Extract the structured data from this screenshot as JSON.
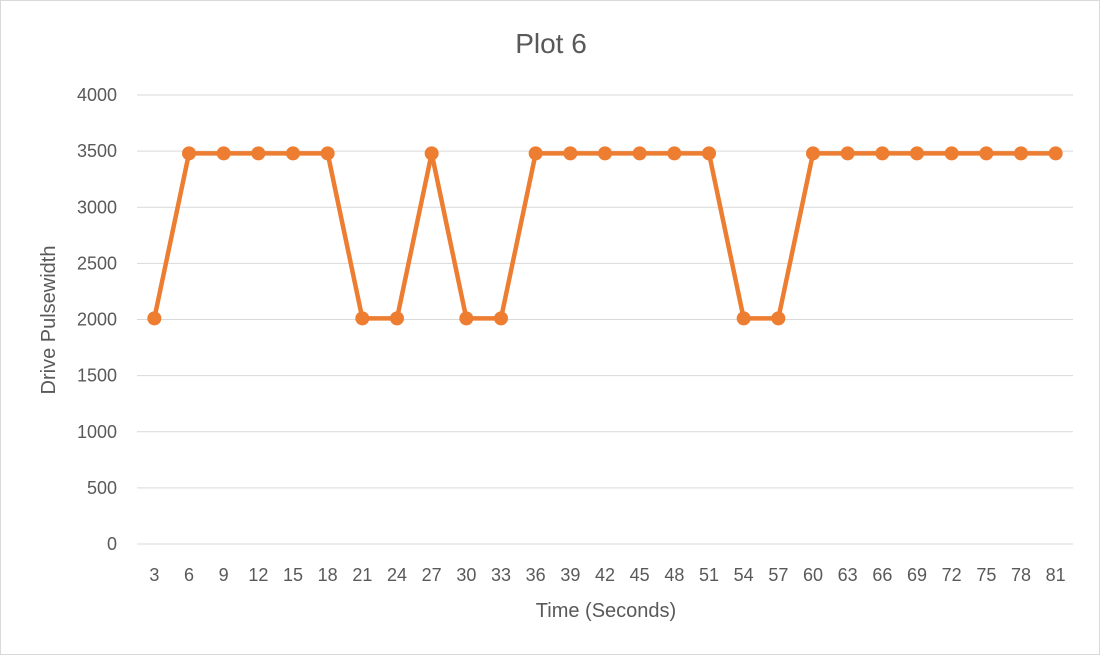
{
  "chart_data": {
    "type": "line",
    "title": "Plot 6",
    "xlabel": "Time (Seconds)",
    "ylabel": "Drive Pulsewidth",
    "categories": [
      "3",
      "6",
      "9",
      "12",
      "15",
      "18",
      "21",
      "24",
      "27",
      "30",
      "33",
      "36",
      "39",
      "42",
      "45",
      "48",
      "51",
      "54",
      "57",
      "60",
      "63",
      "66",
      "69",
      "72",
      "75",
      "78",
      "81"
    ],
    "series": [
      {
        "values": [
          2010,
          3480,
          3480,
          3480,
          3480,
          3480,
          2010,
          2010,
          3480,
          2010,
          2010,
          3480,
          3480,
          3480,
          3480,
          3480,
          3480,
          2010,
          2010,
          3480,
          3480,
          3480,
          3480,
          3480,
          3480,
          3480,
          3480
        ],
        "color": "#ed7d31"
      }
    ],
    "yticks": [
      0,
      500,
      1000,
      1500,
      2000,
      2500,
      3000,
      3500,
      4000
    ],
    "ylim": [
      0,
      4000
    ],
    "grid": true,
    "legend": "none"
  }
}
